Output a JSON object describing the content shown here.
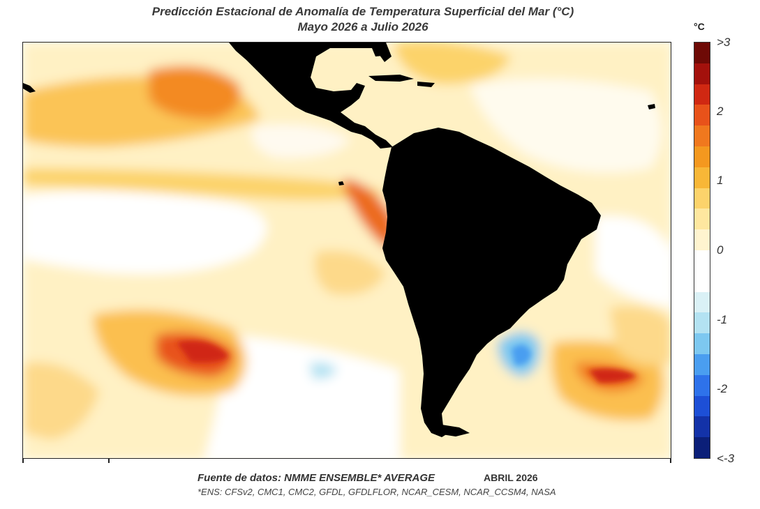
{
  "title": {
    "line1": "Predicción Estacional de Anomalía de Temperatura Superficial del Mar (°C)",
    "line2": "Mayo 2026 a Julio 2026"
  },
  "colorbar": {
    "unit": "°C",
    "labels": [
      ">3",
      "2",
      "1",
      "0",
      "-1",
      "-2",
      "<-3"
    ],
    "colors": [
      "#6e0a06",
      "#a3110c",
      "#d02812",
      "#e8521a",
      "#f0781e",
      "#f4981f",
      "#f8b737",
      "#fcd36b",
      "#fee79f",
      "#fff4cf",
      "#ffffff",
      "#ffffff",
      "#daf1f6",
      "#b3e2f2",
      "#7dc8f0",
      "#4a9ef0",
      "#2e72ea",
      "#1d4fd6",
      "#1332a8",
      "#0b1f78"
    ]
  },
  "footer": {
    "source": "Fuente de datos: NMME ENSEMBLE* AVERAGE",
    "issued": "ABRIL 2026",
    "ensemble": "*ENS: CFSv2, CMC1, CMC2, GFDL, GFDLFLOR, NCAR_CESM, NCAR_CCSM4, NASA"
  },
  "map": {
    "land_color": "#000000",
    "ocean_base_color": "#fffdf2"
  }
}
